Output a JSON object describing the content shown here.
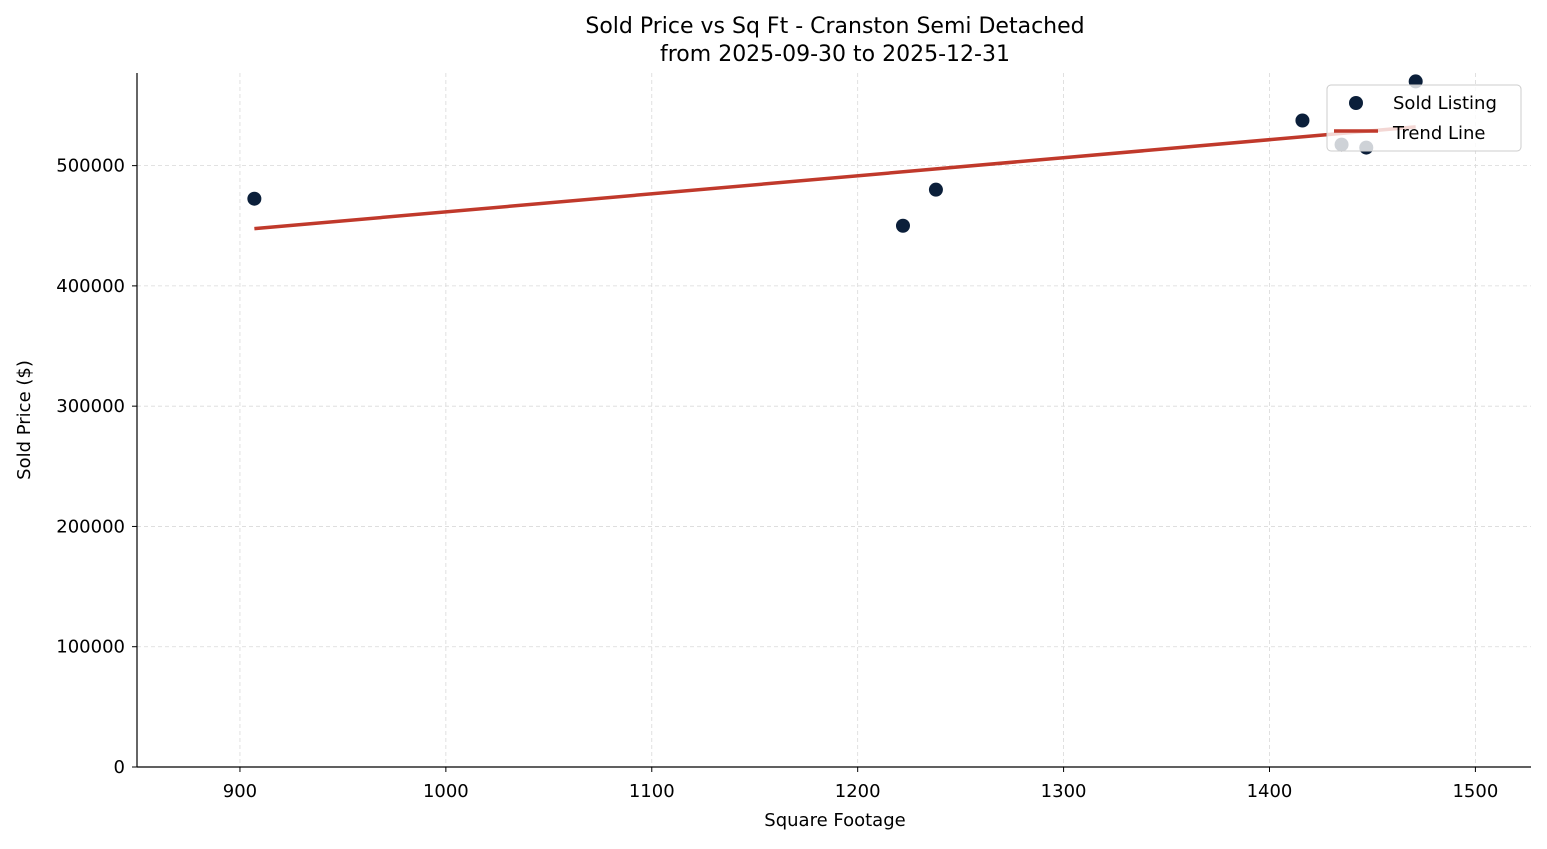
{
  "chart_data": {
    "type": "scatter",
    "title": "Sold Price vs Sq Ft - Cranston Semi Detached",
    "subtitle": "from 2025-09-30 to 2025-12-31",
    "xlabel": "Square Footage",
    "ylabel": "Sold Price ($)",
    "xlim": [
      850,
      1527
    ],
    "ylim": [
      0,
      577000
    ],
    "xticks": [
      900,
      1000,
      1100,
      1200,
      1300,
      1400,
      1500
    ],
    "yticks": [
      0,
      100000,
      200000,
      300000,
      400000,
      500000
    ],
    "grid": true,
    "legend_placement": "top-right",
    "series": [
      {
        "name": "Sold Listing",
        "type": "scatter",
        "color": "#0b1f3a",
        "points": [
          {
            "x": 907,
            "y": 472500
          },
          {
            "x": 1222,
            "y": 450000
          },
          {
            "x": 1238,
            "y": 480000
          },
          {
            "x": 1416,
            "y": 537500
          },
          {
            "x": 1435,
            "y": 517500
          },
          {
            "x": 1447,
            "y": 515000
          },
          {
            "x": 1471,
            "y": 570000
          }
        ]
      },
      {
        "name": "Trend Line",
        "type": "line",
        "color": "#c0392b",
        "points": [
          {
            "x": 907,
            "y": 447600
          },
          {
            "x": 1471,
            "y": 532200
          }
        ]
      }
    ]
  }
}
